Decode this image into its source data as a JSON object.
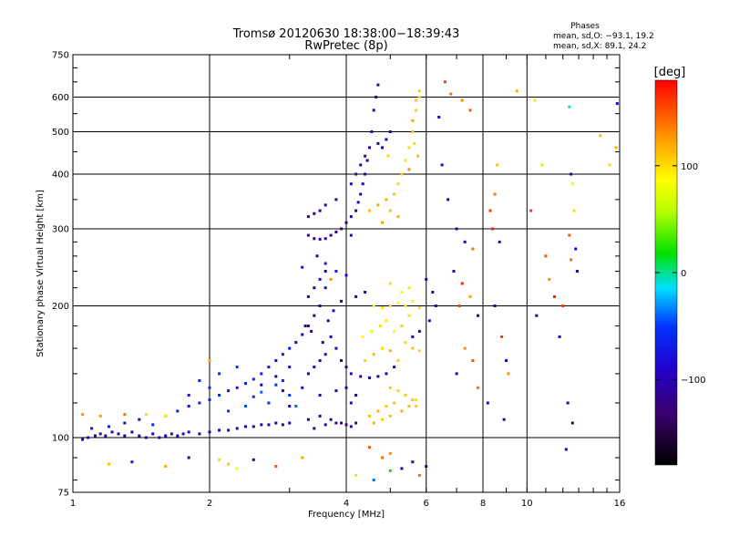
{
  "title": {
    "line1": "Tromsø 20120630 18:38:00−18:39:43",
    "line2": "RwPretec (8p)"
  },
  "stats": {
    "heading": "Phases",
    "o_line": "mean, sd,O: −93.1, 19.2",
    "x_line": "mean, sd,X:  89.1, 24.2"
  },
  "colorbar": {
    "label": "[deg]",
    "min": -180,
    "max": 180,
    "ticks": [
      100,
      0,
      -100
    ],
    "tick_labels": [
      "100",
      "0",
      "−100"
    ]
  },
  "chart_data": {
    "type": "scatter",
    "xlabel": "Frequency [MHz]",
    "ylabel": "Stationary phase Virtual Height [km]",
    "x_scale": "log",
    "y_scale": "log",
    "xlim": [
      1,
      16
    ],
    "ylim": [
      75,
      750
    ],
    "x_ticks": [
      1,
      2,
      4,
      6,
      8,
      10,
      16
    ],
    "x_tick_labels": [
      "1",
      "2",
      "4",
      "6",
      "8",
      "10",
      "16"
    ],
    "y_ticks": [
      75,
      100,
      200,
      300,
      400,
      500,
      600,
      750
    ],
    "y_tick_labels": [
      "75",
      "100",
      "200",
      "300",
      "400",
      "500",
      "600",
      "750"
    ],
    "grid": true,
    "points": [
      [
        1.05,
        99,
        -105
      ],
      [
        1.08,
        100,
        -110
      ],
      [
        1.12,
        101,
        -100
      ],
      [
        1.15,
        102,
        -95
      ],
      [
        1.18,
        101,
        -105
      ],
      [
        1.22,
        103,
        -90
      ],
      [
        1.26,
        102,
        -95
      ],
      [
        1.3,
        101,
        -100
      ],
      [
        1.35,
        103,
        -110
      ],
      [
        1.4,
        101,
        -105
      ],
      [
        1.45,
        100,
        -95
      ],
      [
        1.5,
        102,
        -100
      ],
      [
        1.55,
        100,
        -105
      ],
      [
        1.6,
        101,
        -90
      ],
      [
        1.65,
        102,
        -85
      ],
      [
        1.7,
        101,
        -95
      ],
      [
        1.75,
        102,
        -100
      ],
      [
        1.8,
        103,
        -95
      ],
      [
        1.9,
        102,
        -100
      ],
      [
        2.0,
        103,
        -90
      ],
      [
        2.1,
        104,
        -95
      ],
      [
        2.2,
        104,
        -100
      ],
      [
        2.3,
        105,
        -95
      ],
      [
        2.4,
        106,
        -90
      ],
      [
        2.5,
        106,
        -100
      ],
      [
        2.6,
        107,
        -95
      ],
      [
        2.7,
        107,
        -100
      ],
      [
        2.8,
        108,
        -105
      ],
      [
        2.9,
        107,
        -95
      ],
      [
        3.0,
        108,
        -100
      ],
      [
        1.1,
        105,
        -80
      ],
      [
        1.2,
        106,
        -70
      ],
      [
        1.3,
        108,
        -85
      ],
      [
        1.4,
        110,
        -75
      ],
      [
        1.5,
        107,
        -60
      ],
      [
        1.6,
        112,
        -70
      ],
      [
        1.7,
        115,
        -65
      ],
      [
        1.8,
        118,
        -75
      ],
      [
        1.9,
        120,
        -70
      ],
      [
        2.0,
        122,
        -65
      ],
      [
        2.1,
        125,
        -60
      ],
      [
        2.2,
        128,
        -70
      ],
      [
        2.3,
        130,
        -75
      ],
      [
        2.4,
        133,
        -60
      ],
      [
        2.5,
        136,
        -65
      ],
      [
        2.6,
        140,
        -70
      ],
      [
        2.7,
        145,
        -75
      ],
      [
        2.8,
        150,
        -80
      ],
      [
        2.9,
        155,
        -70
      ],
      [
        3.0,
        160,
        -75
      ],
      [
        2.2,
        115,
        -50
      ],
      [
        2.4,
        118,
        -45
      ],
      [
        2.5,
        124,
        -55
      ],
      [
        2.6,
        127,
        -40
      ],
      [
        2.8,
        132,
        -50
      ],
      [
        3.1,
        165,
        -100
      ],
      [
        3.2,
        172,
        -105
      ],
      [
        3.3,
        180,
        -110
      ],
      [
        3.4,
        190,
        -115
      ],
      [
        3.5,
        200,
        -110
      ],
      [
        3.2,
        130,
        -95
      ],
      [
        3.3,
        140,
        -100
      ],
      [
        3.4,
        145,
        -110
      ],
      [
        3.5,
        150,
        -105
      ],
      [
        3.6,
        155,
        -100
      ],
      [
        3.3,
        110,
        -110
      ],
      [
        3.5,
        112,
        -115
      ],
      [
        3.7,
        110,
        -110
      ],
      [
        3.9,
        108,
        -105
      ],
      [
        4.1,
        106,
        -100
      ],
      [
        3.4,
        105,
        -120
      ],
      [
        3.6,
        107,
        -115
      ],
      [
        3.8,
        108,
        -110
      ],
      [
        4.0,
        107,
        -120
      ],
      [
        4.2,
        108,
        -115
      ],
      [
        3.9,
        150,
        -110
      ],
      [
        4.0,
        145,
        -115
      ],
      [
        4.1,
        140,
        -110
      ],
      [
        4.3,
        138,
        -105
      ],
      [
        4.5,
        137,
        -100
      ],
      [
        4.7,
        138,
        -105
      ],
      [
        4.9,
        140,
        -110
      ],
      [
        5.1,
        145,
        -100
      ],
      [
        3.8,
        160,
        -95
      ],
      [
        3.7,
        170,
        -90
      ],
      [
        3.3,
        290,
        -110
      ],
      [
        3.4,
        285,
        -115
      ],
      [
        3.5,
        284,
        -110
      ],
      [
        3.6,
        285,
        -105
      ],
      [
        3.7,
        290,
        -110
      ],
      [
        3.8,
        295,
        -115
      ],
      [
        3.9,
        300,
        -110
      ],
      [
        4.0,
        310,
        -105
      ],
      [
        4.1,
        320,
        -100
      ],
      [
        4.2,
        330,
        -110
      ],
      [
        4.25,
        345,
        -105
      ],
      [
        4.3,
        360,
        -110
      ],
      [
        4.35,
        380,
        -100
      ],
      [
        4.4,
        400,
        -105
      ],
      [
        4.45,
        430,
        -110
      ],
      [
        4.5,
        460,
        -100
      ],
      [
        4.55,
        500,
        -95
      ],
      [
        4.6,
        560,
        -100
      ],
      [
        4.65,
        600,
        -95
      ],
      [
        4.7,
        640,
        -100
      ],
      [
        3.3,
        320,
        -120
      ],
      [
        3.4,
        325,
        -115
      ],
      [
        3.5,
        330,
        -110
      ],
      [
        3.6,
        340,
        -105
      ],
      [
        3.8,
        350,
        -110
      ],
      [
        4.1,
        380,
        -105
      ],
      [
        4.2,
        400,
        -95
      ],
      [
        4.3,
        420,
        -100
      ],
      [
        4.4,
        440,
        -105
      ],
      [
        4.1,
        290,
        -110
      ],
      [
        4.5,
        330,
        110
      ],
      [
        4.7,
        340,
        120
      ],
      [
        4.9,
        350,
        115
      ],
      [
        5.1,
        360,
        110
      ],
      [
        5.2,
        380,
        100
      ],
      [
        5.3,
        400,
        105
      ],
      [
        5.4,
        430,
        95
      ],
      [
        5.5,
        460,
        100
      ],
      [
        5.6,
        500,
        110
      ],
      [
        5.7,
        560,
        105
      ],
      [
        5.8,
        600,
        100
      ],
      [
        5.5,
        410,
        130
      ],
      [
        5.2,
        320,
        115
      ],
      [
        4.8,
        310,
        120
      ],
      [
        5.0,
        330,
        110
      ],
      [
        4.5,
        112,
        110
      ],
      [
        4.7,
        115,
        115
      ],
      [
        4.9,
        118,
        105
      ],
      [
        5.1,
        120,
        110
      ],
      [
        5.3,
        115,
        120
      ],
      [
        5.5,
        118,
        110
      ],
      [
        5.7,
        122,
        100
      ],
      [
        4.6,
        108,
        115
      ],
      [
        4.8,
        110,
        105
      ],
      [
        5.0,
        112,
        110
      ],
      [
        4.4,
        150,
        105
      ],
      [
        4.6,
        155,
        110
      ],
      [
        4.8,
        160,
        100
      ],
      [
        5.0,
        158,
        115
      ],
      [
        5.2,
        150,
        105
      ],
      [
        4.6,
        200,
        90
      ],
      [
        4.8,
        198,
        95
      ],
      [
        5.0,
        200,
        100
      ],
      [
        5.2,
        203,
        85
      ],
      [
        5.4,
        200,
        95
      ],
      [
        5.6,
        205,
        90
      ],
      [
        5.8,
        198,
        100
      ],
      [
        5.5,
        220,
        95
      ],
      [
        5.3,
        215,
        90
      ],
      [
        5.0,
        225,
        100
      ],
      [
        3.6,
        220,
        -90
      ],
      [
        3.9,
        205,
        -95
      ],
      [
        4.2,
        210,
        -100
      ],
      [
        4.4,
        215,
        -105
      ],
      [
        6.0,
        230,
        -110
      ],
      [
        6.2,
        215,
        -100
      ],
      [
        6.3,
        200,
        -95
      ],
      [
        6.1,
        185,
        -105
      ],
      [
        5.8,
        175,
        -100
      ],
      [
        5.6,
        170,
        -110
      ],
      [
        3.2,
        245,
        -80
      ],
      [
        3.6,
        250,
        -75
      ],
      [
        3.8,
        240,
        -70
      ],
      [
        4.0,
        235,
        -85
      ],
      [
        3.7,
        230,
        130
      ],
      [
        4.5,
        95,
        150
      ],
      [
        4.8,
        90,
        140
      ],
      [
        5.0,
        92,
        130
      ],
      [
        5.3,
        85,
        -100
      ],
      [
        5.6,
        88,
        -110
      ],
      [
        4.2,
        82,
        60
      ],
      [
        4.6,
        80,
        -40
      ],
      [
        5.0,
        84,
        20
      ],
      [
        5.8,
        82,
        140
      ],
      [
        6.0,
        86,
        -120
      ],
      [
        6.6,
        650,
        160
      ],
      [
        6.8,
        610,
        140
      ],
      [
        7.2,
        590,
        130
      ],
      [
        7.5,
        560,
        150
      ],
      [
        6.4,
        540,
        -100
      ],
      [
        6.5,
        420,
        -90
      ],
      [
        6.7,
        350,
        -110
      ],
      [
        7.0,
        300,
        -120
      ],
      [
        7.3,
        280,
        -100
      ],
      [
        7.6,
        270,
        140
      ],
      [
        6.9,
        240,
        -100
      ],
      [
        7.2,
        225,
        170
      ],
      [
        7.5,
        210,
        120
      ],
      [
        7.1,
        200,
        160
      ],
      [
        7.8,
        190,
        -110
      ],
      [
        7.3,
        160,
        130
      ],
      [
        7.6,
        150,
        150
      ],
      [
        7.0,
        140,
        -100
      ],
      [
        7.8,
        130,
        140
      ],
      [
        8.2,
        120,
        -100
      ],
      [
        8.3,
        330,
        160
      ],
      [
        8.5,
        360,
        140
      ],
      [
        8.6,
        420,
        110
      ],
      [
        8.4,
        300,
        170
      ],
      [
        8.7,
        280,
        -100
      ],
      [
        8.5,
        200,
        -110
      ],
      [
        8.8,
        170,
        160
      ],
      [
        9.0,
        150,
        -100
      ],
      [
        9.1,
        140,
        130
      ],
      [
        8.9,
        110,
        -90
      ],
      [
        9.5,
        620,
        120
      ],
      [
        10.4,
        590,
        100
      ],
      [
        10.8,
        420,
        60
      ],
      [
        10.2,
        330,
        160
      ],
      [
        10.5,
        190,
        -100
      ],
      [
        11.0,
        260,
        150
      ],
      [
        11.2,
        230,
        130
      ],
      [
        11.5,
        210,
        170
      ],
      [
        12.0,
        200,
        160
      ],
      [
        11.8,
        170,
        -100
      ],
      [
        12.5,
        400,
        -110
      ],
      [
        12.6,
        380,
        80
      ],
      [
        12.7,
        330,
        100
      ],
      [
        12.4,
        290,
        150
      ],
      [
        12.8,
        270,
        -100
      ],
      [
        12.5,
        255,
        140
      ],
      [
        12.9,
        240,
        -100
      ],
      [
        12.3,
        120,
        -110
      ],
      [
        12.6,
        108,
        -100
      ],
      [
        12.2,
        94,
        -100
      ],
      [
        12.4,
        570,
        -10
      ],
      [
        14.5,
        490,
        110
      ],
      [
        15.8,
        580,
        -110
      ],
      [
        15.7,
        460,
        120
      ],
      [
        15.2,
        420,
        100
      ],
      [
        1.05,
        113,
        130
      ],
      [
        1.15,
        112,
        120
      ],
      [
        1.3,
        113,
        140
      ],
      [
        1.45,
        113,
        100
      ],
      [
        1.6,
        112,
        90
      ],
      [
        1.2,
        87,
        110
      ],
      [
        1.6,
        86,
        120
      ],
      [
        2.1,
        89,
        100
      ],
      [
        2.2,
        87,
        110
      ],
      [
        2.5,
        89,
        -100
      ],
      [
        2.8,
        86,
        150
      ],
      [
        1.35,
        88,
        -100
      ],
      [
        1.8,
        90,
        -110
      ],
      [
        2.3,
        85,
        80
      ],
      [
        3.2,
        90,
        120
      ],
      [
        2.7,
        120,
        -60
      ],
      [
        3.0,
        125,
        -50
      ],
      [
        3.1,
        118,
        -40
      ],
      [
        2.9,
        135,
        -55
      ],
      [
        2.0,
        150,
        120
      ],
      [
        1.8,
        125,
        -70
      ],
      [
        1.9,
        135,
        -65
      ],
      [
        2.1,
        140,
        -60
      ],
      [
        2.0,
        130,
        -55
      ],
      [
        2.3,
        145,
        -50
      ],
      [
        3.4,
        220,
        -110
      ],
      [
        3.3,
        210,
        -120
      ],
      [
        3.5,
        230,
        -100
      ],
      [
        3.6,
        240,
        -115
      ],
      [
        3.45,
        260,
        -110
      ],
      [
        3.25,
        180,
        -120
      ],
      [
        3.35,
        175,
        -115
      ],
      [
        3.55,
        165,
        -110
      ],
      [
        3.65,
        185,
        -100
      ],
      [
        3.75,
        195,
        -105
      ],
      [
        4.35,
        170,
        90
      ],
      [
        4.55,
        175,
        80
      ],
      [
        4.75,
        180,
        100
      ],
      [
        4.9,
        185,
        95
      ],
      [
        5.1,
        175,
        90
      ],
      [
        5.3,
        180,
        105
      ],
      [
        5.5,
        190,
        95
      ],
      [
        5.4,
        165,
        100
      ],
      [
        5.6,
        160,
        110
      ],
      [
        5.8,
        158,
        100
      ],
      [
        5.0,
        130,
        110
      ],
      [
        5.2,
        128,
        100
      ],
      [
        5.4,
        125,
        105
      ],
      [
        5.6,
        122,
        110
      ],
      [
        5.7,
        118,
        105
      ],
      [
        3.0,
        145,
        -100
      ],
      [
        2.8,
        138,
        -105
      ],
      [
        2.6,
        132,
        -110
      ],
      [
        2.9,
        128,
        -95
      ],
      [
        3.0,
        118,
        -100
      ],
      [
        3.5,
        125,
        -105
      ],
      [
        3.8,
        128,
        -110
      ],
      [
        4.0,
        130,
        -105
      ],
      [
        4.2,
        125,
        -100
      ],
      [
        4.1,
        120,
        -110
      ],
      [
        4.8,
        460,
        -110
      ],
      [
        4.9,
        480,
        -105
      ],
      [
        5.0,
        500,
        -100
      ],
      [
        4.7,
        470,
        -110
      ],
      [
        4.95,
        440,
        100
      ],
      [
        5.6,
        530,
        120
      ],
      [
        5.7,
        590,
        110
      ],
      [
        5.8,
        620,
        105
      ],
      [
        5.65,
        470,
        100
      ],
      [
        5.75,
        440,
        110
      ]
    ]
  }
}
